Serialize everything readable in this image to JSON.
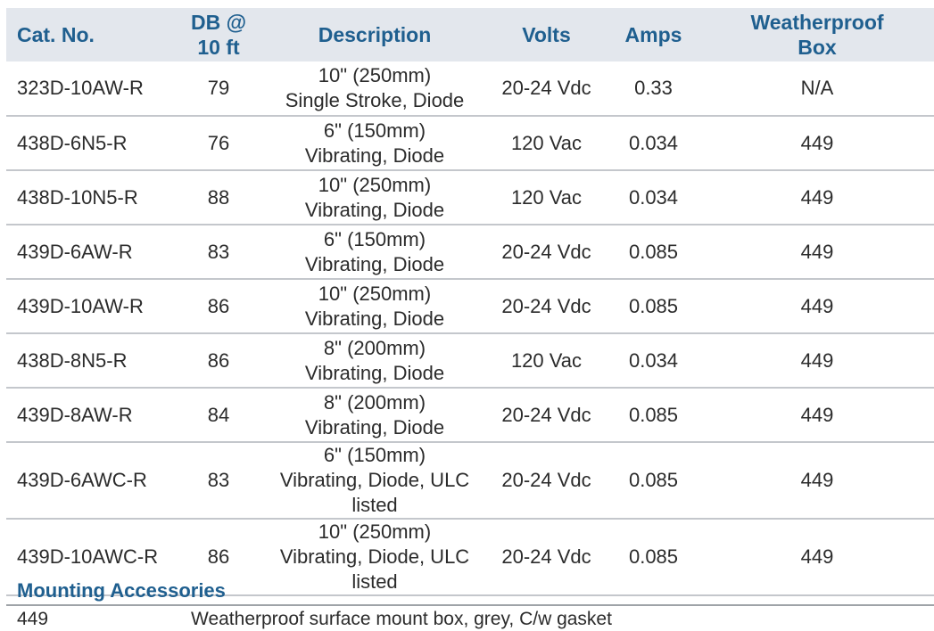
{
  "table": {
    "headers": {
      "cat_no": "Cat. No.",
      "db_line1": "DB @",
      "db_line2": "10 ft",
      "description": "Description",
      "volts": "Volts",
      "amps": "Amps",
      "weatherproof_line1": "Weatherproof",
      "weatherproof_line2": "Box"
    },
    "rows": [
      {
        "cat_no": "323D-10AW-R",
        "db": "79",
        "desc_line1": "10\" (250mm)",
        "desc_line2": "Single Stroke, Diode",
        "volts": "20-24 Vdc",
        "amps": "0.33",
        "box": "N/A"
      },
      {
        "cat_no": "438D-6N5-R",
        "db": "76",
        "desc_line1": "6\" (150mm)",
        "desc_line2": "Vibrating, Diode",
        "volts": "120 Vac",
        "amps": "0.034",
        "box": "449"
      },
      {
        "cat_no": "438D-10N5-R",
        "db": "88",
        "desc_line1": "10\" (250mm)",
        "desc_line2": "Vibrating, Diode",
        "volts": "120 Vac",
        "amps": "0.034",
        "box": "449"
      },
      {
        "cat_no": "439D-6AW-R",
        "db": "83",
        "desc_line1": "6\" (150mm)",
        "desc_line2": "Vibrating, Diode",
        "volts": "20-24 Vdc",
        "amps": "0.085",
        "box": "449"
      },
      {
        "cat_no": "439D-10AW-R",
        "db": "86",
        "desc_line1": "10\" (250mm)",
        "desc_line2": "Vibrating, Diode",
        "volts": "20-24 Vdc",
        "amps": "0.085",
        "box": "449"
      },
      {
        "cat_no": "438D-8N5-R",
        "db": "86",
        "desc_line1": "8\" (200mm)",
        "desc_line2": "Vibrating, Diode",
        "volts": "120 Vac",
        "amps": "0.034",
        "box": "449"
      },
      {
        "cat_no": "439D-8AW-R",
        "db": "84",
        "desc_line1": "8\" (200mm)",
        "desc_line2": "Vibrating, Diode",
        "volts": "20-24 Vdc",
        "amps": "0.085",
        "box": "449"
      },
      {
        "cat_no": "439D-6AWC-R",
        "db": "83",
        "desc_line1": "6\" (150mm)",
        "desc_line2": "Vibrating, Diode, ULC listed",
        "volts": "20-24 Vdc",
        "amps": "0.085",
        "box": "449"
      },
      {
        "cat_no": "439D-10AWC-R",
        "db": "86",
        "desc_line1": "10\" (250mm)",
        "desc_line2": "Vibrating, Diode, ULC listed",
        "volts": "20-24 Vdc",
        "amps": "0.085",
        "box": "449"
      }
    ]
  },
  "accessories": {
    "heading": "Mounting Accessories",
    "items": [
      {
        "cat_no": "449",
        "description": "Weatherproof surface mount box, grey, C/w gasket"
      }
    ]
  },
  "colors": {
    "header_background": "#e3e7ed",
    "header_text": "#1f5f8f",
    "body_text": "#2b2b2b",
    "row_divider": "#c4c7cc"
  }
}
